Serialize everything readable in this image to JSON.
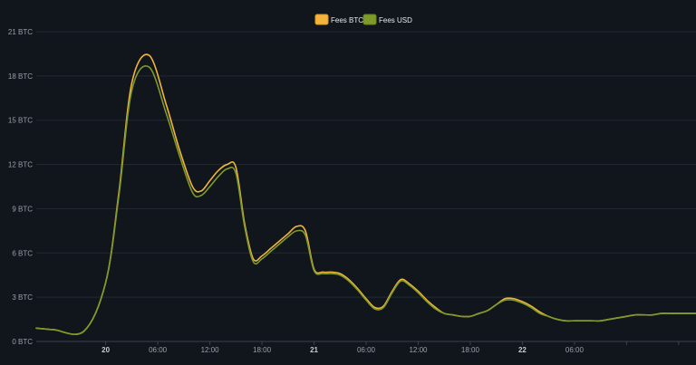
{
  "chart_data": {
    "type": "line",
    "title": "",
    "xlabel": "",
    "ylabel": "",
    "ylim": [
      0,
      21
    ],
    "ytick_values": [
      0,
      3,
      6,
      9,
      12,
      15,
      18,
      21
    ],
    "ytick_labels": [
      "0 BTC",
      "3 BTC",
      "6 BTC",
      "9 BTC",
      "12 BTC",
      "15 BTC",
      "18 BTC",
      "21 BTC"
    ],
    "xlim": [
      -8,
      68
    ],
    "xtick_hours": [
      0,
      6,
      12,
      18,
      24,
      30,
      36,
      42,
      48,
      54,
      60,
      66
    ],
    "xtick_labels": [
      "20",
      "06:00",
      "12:00",
      "18:00",
      "21",
      "06:00",
      "12:00",
      "18:00",
      "22",
      "06:00"
    ],
    "xtick_label_hours": [
      0,
      6,
      12,
      18,
      24,
      30,
      36,
      42,
      48,
      54
    ],
    "xtick_bold": [
      true,
      false,
      false,
      false,
      true,
      false,
      false,
      false,
      true,
      false
    ],
    "grid": true,
    "legend_position": "top-center",
    "series": [
      {
        "name": "Fees BTC",
        "color": "#f2b43c",
        "x": [
          -8,
          -6,
          -2.5,
          0,
          1.5,
          3,
          5,
          7,
          8.5,
          10,
          11,
          12,
          13,
          14,
          15,
          16,
          17,
          18,
          19,
          20,
          21,
          22,
          23,
          24,
          25,
          26,
          27,
          28,
          29,
          30,
          31,
          32,
          33,
          34,
          35,
          36,
          37,
          38,
          39,
          40,
          41,
          42,
          43,
          44,
          45,
          46,
          47,
          48,
          49,
          50,
          51,
          52,
          53,
          54,
          55,
          56,
          57,
          58,
          59,
          60,
          61,
          62,
          63,
          64,
          65,
          66,
          67,
          68
        ],
        "values": [
          0.9,
          0.8,
          0.7,
          4.0,
          10.0,
          17.5,
          19.4,
          16.0,
          13.0,
          10.5,
          10.2,
          10.9,
          11.6,
          12.0,
          11.8,
          8.0,
          5.6,
          5.8,
          6.3,
          6.8,
          7.3,
          7.8,
          7.5,
          4.9,
          4.7,
          4.7,
          4.6,
          4.2,
          3.6,
          2.9,
          2.3,
          2.4,
          3.4,
          4.2,
          3.9,
          3.4,
          2.8,
          2.3,
          1.9,
          1.8,
          1.7,
          1.7,
          1.9,
          2.1,
          2.5,
          2.9,
          2.9,
          2.7,
          2.4,
          2.0,
          1.7,
          1.5,
          1.4,
          1.4,
          1.4,
          1.4,
          1.4,
          1.5,
          1.6,
          1.7,
          1.8,
          1.8,
          1.8,
          1.9,
          1.9,
          1.9,
          1.9,
          1.9
        ]
      },
      {
        "name": "Fees USD",
        "color": "#7d9a2a",
        "x": [
          -8,
          -6,
          -2.5,
          0,
          1.5,
          3,
          5,
          7,
          8.5,
          10,
          11,
          12,
          13,
          14,
          15,
          16,
          17,
          18,
          19,
          20,
          21,
          22,
          23,
          24,
          25,
          26,
          27,
          28,
          29,
          30,
          31,
          32,
          33,
          34,
          35,
          36,
          37,
          38,
          39,
          40,
          41,
          42,
          43,
          44,
          45,
          46,
          47,
          48,
          49,
          50,
          51,
          52,
          53,
          54,
          55,
          56,
          57,
          58,
          59,
          60,
          61,
          62,
          63,
          64,
          65,
          66,
          67,
          68
        ],
        "values": [
          0.9,
          0.8,
          0.7,
          4.0,
          9.8,
          17.0,
          18.6,
          15.4,
          12.6,
          10.1,
          9.9,
          10.5,
          11.2,
          11.7,
          11.4,
          7.8,
          5.4,
          5.6,
          6.1,
          6.6,
          7.1,
          7.5,
          7.2,
          4.8,
          4.6,
          4.6,
          4.5,
          4.1,
          3.5,
          2.8,
          2.2,
          2.3,
          3.3,
          4.1,
          3.8,
          3.3,
          2.7,
          2.2,
          1.9,
          1.8,
          1.7,
          1.7,
          1.9,
          2.1,
          2.5,
          2.8,
          2.8,
          2.6,
          2.3,
          1.9,
          1.7,
          1.5,
          1.4,
          1.4,
          1.4,
          1.4,
          1.4,
          1.5,
          1.6,
          1.7,
          1.8,
          1.8,
          1.8,
          1.9,
          1.9,
          1.9,
          1.9,
          1.9
        ]
      }
    ]
  }
}
